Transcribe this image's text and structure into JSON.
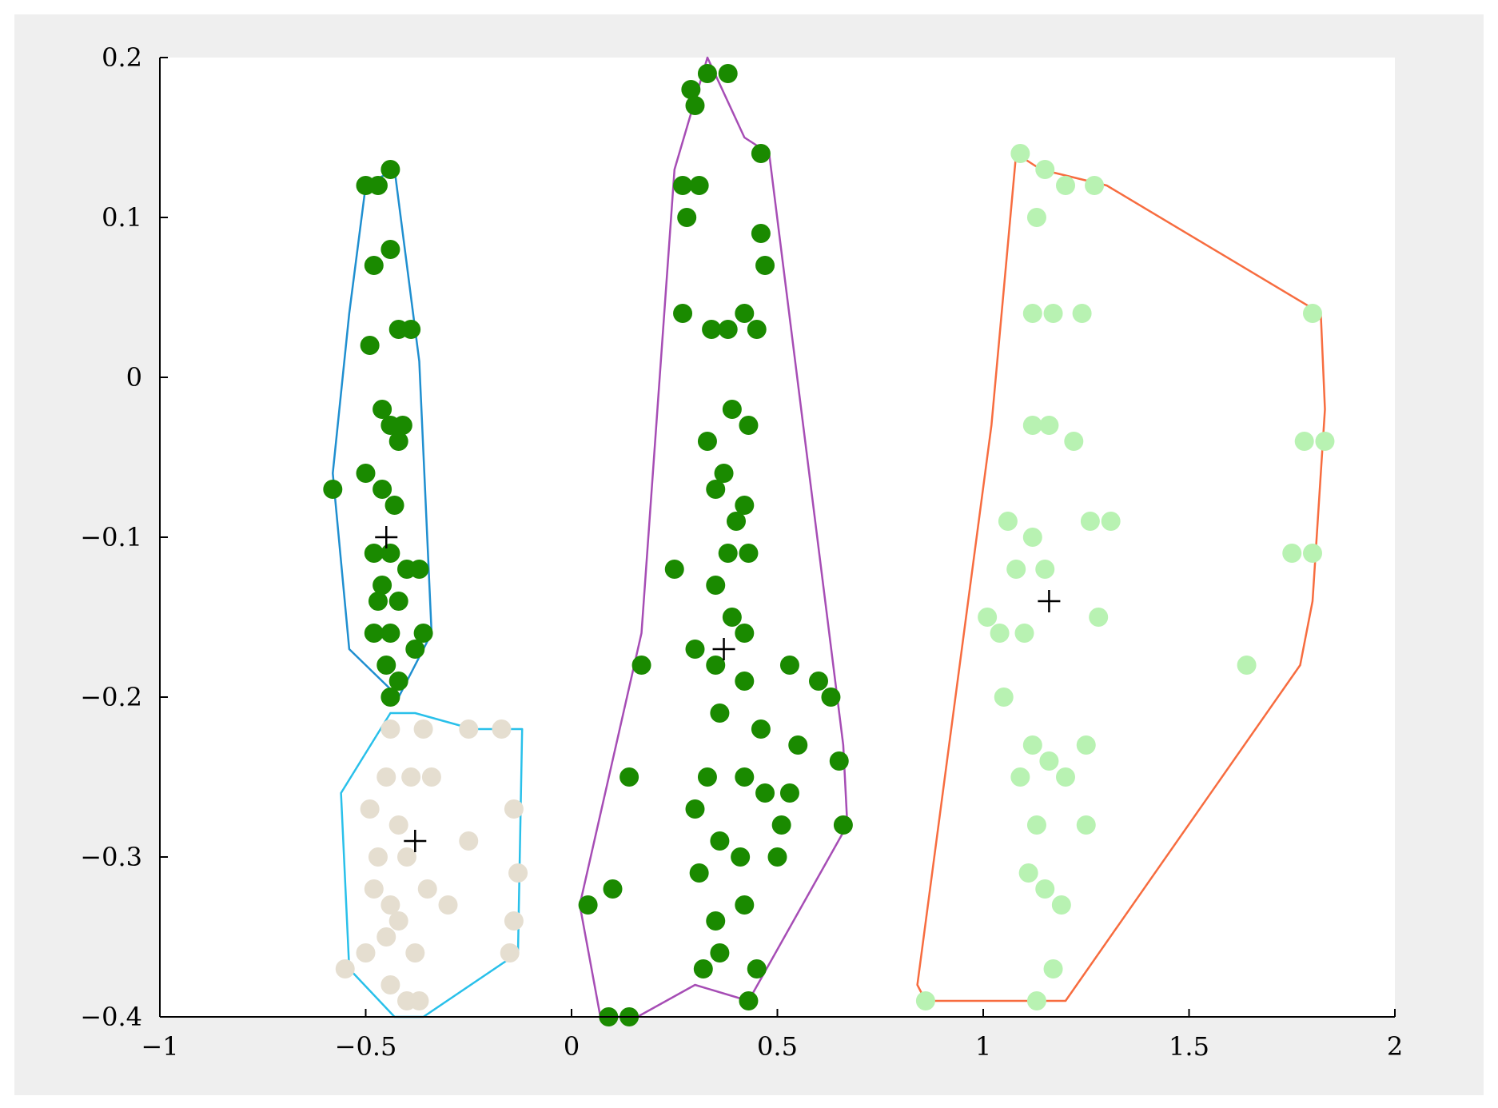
{
  "chart_data": {
    "type": "scatter",
    "title": "",
    "xlabel": "",
    "ylabel": "",
    "xlim": [
      -1,
      2
    ],
    "ylim": [
      -0.4,
      0.2
    ],
    "xticks": [
      -1,
      -0.5,
      0,
      0.5,
      1,
      1.5,
      2
    ],
    "xtick_labels": [
      "−1",
      "−0.5",
      "0",
      "0.5",
      "1",
      "1.5",
      "2"
    ],
    "yticks": [
      0.2,
      0.1,
      0,
      -0.1,
      -0.2,
      -0.3,
      -0.4
    ],
    "ytick_labels": [
      "0.2",
      "0.1",
      "0",
      "−0.1",
      "−0.2",
      "−0.3",
      "−0.4"
    ],
    "grid": false,
    "legend": "none",
    "colors": {
      "figure_background": "#efefef",
      "axes_background": "#ffffff",
      "axis": "#000000",
      "centroid": "#000000"
    },
    "series": [
      {
        "color": "#1a8a00",
        "hull_color": "#1f8fd0",
        "centroid": [
          -0.45,
          -0.1
        ],
        "hull": [
          [
            -0.5,
            0.12
          ],
          [
            -0.43,
            0.13
          ],
          [
            -0.37,
            0.01
          ],
          [
            -0.34,
            -0.16
          ],
          [
            -0.42,
            -0.2
          ],
          [
            -0.54,
            -0.17
          ],
          [
            -0.58,
            -0.06
          ],
          [
            -0.54,
            0.04
          ]
        ],
        "points": [
          [
            -0.5,
            0.12
          ],
          [
            -0.44,
            0.13
          ],
          [
            -0.47,
            0.12
          ],
          [
            -0.48,
            0.07
          ],
          [
            -0.44,
            0.08
          ],
          [
            -0.49,
            0.02
          ],
          [
            -0.42,
            0.03
          ],
          [
            -0.39,
            0.03
          ],
          [
            -0.44,
            -0.03
          ],
          [
            -0.41,
            -0.03
          ],
          [
            -0.46,
            -0.02
          ],
          [
            -0.42,
            -0.04
          ],
          [
            -0.58,
            -0.07
          ],
          [
            -0.5,
            -0.06
          ],
          [
            -0.46,
            -0.07
          ],
          [
            -0.43,
            -0.08
          ],
          [
            -0.48,
            -0.11
          ],
          [
            -0.44,
            -0.11
          ],
          [
            -0.4,
            -0.12
          ],
          [
            -0.46,
            -0.13
          ],
          [
            -0.42,
            -0.14
          ],
          [
            -0.37,
            -0.12
          ],
          [
            -0.48,
            -0.16
          ],
          [
            -0.44,
            -0.16
          ],
          [
            -0.36,
            -0.16
          ],
          [
            -0.45,
            -0.18
          ],
          [
            -0.42,
            -0.19
          ],
          [
            -0.44,
            -0.2
          ],
          [
            -0.47,
            -0.14
          ],
          [
            -0.38,
            -0.17
          ]
        ]
      },
      {
        "color": "#e5ded0",
        "hull_color": "#29c0ea",
        "centroid": [
          -0.38,
          -0.29
        ],
        "hull": [
          [
            -0.44,
            -0.21
          ],
          [
            -0.38,
            -0.21
          ],
          [
            -0.24,
            -0.22
          ],
          [
            -0.12,
            -0.22
          ],
          [
            -0.13,
            -0.36
          ],
          [
            -0.36,
            -0.4
          ],
          [
            -0.43,
            -0.4
          ],
          [
            -0.54,
            -0.37
          ],
          [
            -0.56,
            -0.26
          ]
        ],
        "points": [
          [
            -0.44,
            -0.22
          ],
          [
            -0.36,
            -0.22
          ],
          [
            -0.25,
            -0.22
          ],
          [
            -0.17,
            -0.22
          ],
          [
            -0.45,
            -0.25
          ],
          [
            -0.39,
            -0.25
          ],
          [
            -0.34,
            -0.25
          ],
          [
            -0.49,
            -0.27
          ],
          [
            -0.42,
            -0.28
          ],
          [
            -0.25,
            -0.29
          ],
          [
            -0.14,
            -0.27
          ],
          [
            -0.4,
            -0.3
          ],
          [
            -0.47,
            -0.3
          ],
          [
            -0.13,
            -0.31
          ],
          [
            -0.44,
            -0.33
          ],
          [
            -0.3,
            -0.33
          ],
          [
            -0.35,
            -0.32
          ],
          [
            -0.14,
            -0.34
          ],
          [
            -0.45,
            -0.35
          ],
          [
            -0.38,
            -0.36
          ],
          [
            -0.15,
            -0.36
          ],
          [
            -0.44,
            -0.38
          ],
          [
            -0.55,
            -0.37
          ],
          [
            -0.4,
            -0.39
          ],
          [
            -0.37,
            -0.39
          ],
          [
            -0.5,
            -0.36
          ],
          [
            -0.48,
            -0.32
          ],
          [
            -0.42,
            -0.34
          ]
        ]
      },
      {
        "color": "#1a8a00",
        "hull_color": "#a64db5",
        "centroid": [
          0.37,
          -0.17
        ],
        "hull": [
          [
            0.33,
            0.2
          ],
          [
            0.42,
            0.15
          ],
          [
            0.48,
            0.14
          ],
          [
            0.66,
            -0.23
          ],
          [
            0.67,
            -0.28
          ],
          [
            0.43,
            -0.39
          ],
          [
            0.3,
            -0.38
          ],
          [
            0.16,
            -0.4
          ],
          [
            0.07,
            -0.4
          ],
          [
            0.02,
            -0.33
          ],
          [
            0.17,
            -0.16
          ],
          [
            0.25,
            0.13
          ]
        ],
        "points": [
          [
            0.33,
            0.19
          ],
          [
            0.38,
            0.19
          ],
          [
            0.29,
            0.18
          ],
          [
            0.3,
            0.17
          ],
          [
            0.46,
            0.14
          ],
          [
            0.27,
            0.12
          ],
          [
            0.31,
            0.12
          ],
          [
            0.28,
            0.1
          ],
          [
            0.46,
            0.09
          ],
          [
            0.47,
            0.07
          ],
          [
            0.27,
            0.04
          ],
          [
            0.34,
            0.03
          ],
          [
            0.42,
            0.04
          ],
          [
            0.45,
            0.03
          ],
          [
            0.38,
            0.03
          ],
          [
            0.39,
            -0.02
          ],
          [
            0.43,
            -0.03
          ],
          [
            0.33,
            -0.04
          ],
          [
            0.37,
            -0.06
          ],
          [
            0.35,
            -0.07
          ],
          [
            0.42,
            -0.08
          ],
          [
            0.4,
            -0.09
          ],
          [
            0.38,
            -0.11
          ],
          [
            0.43,
            -0.11
          ],
          [
            0.25,
            -0.12
          ],
          [
            0.35,
            -0.13
          ],
          [
            0.39,
            -0.15
          ],
          [
            0.42,
            -0.16
          ],
          [
            0.17,
            -0.18
          ],
          [
            0.3,
            -0.17
          ],
          [
            0.35,
            -0.18
          ],
          [
            0.42,
            -0.19
          ],
          [
            0.53,
            -0.18
          ],
          [
            0.6,
            -0.19
          ],
          [
            0.63,
            -0.2
          ],
          [
            0.36,
            -0.21
          ],
          [
            0.46,
            -0.22
          ],
          [
            0.55,
            -0.23
          ],
          [
            0.65,
            -0.24
          ],
          [
            0.33,
            -0.25
          ],
          [
            0.42,
            -0.25
          ],
          [
            0.47,
            -0.26
          ],
          [
            0.14,
            -0.25
          ],
          [
            0.3,
            -0.27
          ],
          [
            0.53,
            -0.26
          ],
          [
            0.51,
            -0.28
          ],
          [
            0.36,
            -0.29
          ],
          [
            0.41,
            -0.3
          ],
          [
            0.5,
            -0.3
          ],
          [
            0.66,
            -0.28
          ],
          [
            0.31,
            -0.31
          ],
          [
            0.42,
            -0.33
          ],
          [
            0.35,
            -0.34
          ],
          [
            0.1,
            -0.32
          ],
          [
            0.04,
            -0.33
          ],
          [
            0.36,
            -0.36
          ],
          [
            0.45,
            -0.37
          ],
          [
            0.32,
            -0.37
          ],
          [
            0.43,
            -0.39
          ],
          [
            0.09,
            -0.4
          ],
          [
            0.14,
            -0.4
          ]
        ]
      },
      {
        "color": "#b8f2b2",
        "hull_color": "#f76c3f",
        "centroid": [
          1.16,
          -0.14
        ],
        "hull": [
          [
            1.08,
            0.14
          ],
          [
            1.14,
            0.13
          ],
          [
            1.3,
            0.12
          ],
          [
            1.82,
            0.04
          ],
          [
            1.83,
            -0.02
          ],
          [
            1.8,
            -0.14
          ],
          [
            1.77,
            -0.18
          ],
          [
            1.2,
            -0.39
          ],
          [
            1.17,
            -0.39
          ],
          [
            1.08,
            -0.39
          ],
          [
            0.86,
            -0.39
          ],
          [
            0.84,
            -0.38
          ],
          [
            1.02,
            -0.03
          ]
        ],
        "points": [
          [
            1.09,
            0.14
          ],
          [
            1.15,
            0.13
          ],
          [
            1.2,
            0.12
          ],
          [
            1.27,
            0.12
          ],
          [
            1.13,
            0.1
          ],
          [
            1.8,
            0.04
          ],
          [
            1.12,
            0.04
          ],
          [
            1.17,
            0.04
          ],
          [
            1.24,
            0.04
          ],
          [
            1.12,
            -0.03
          ],
          [
            1.16,
            -0.03
          ],
          [
            1.22,
            -0.04
          ],
          [
            1.78,
            -0.04
          ],
          [
            1.83,
            -0.04
          ],
          [
            1.06,
            -0.09
          ],
          [
            1.12,
            -0.1
          ],
          [
            1.26,
            -0.09
          ],
          [
            1.31,
            -0.09
          ],
          [
            1.08,
            -0.12
          ],
          [
            1.15,
            -0.12
          ],
          [
            1.8,
            -0.11
          ],
          [
            1.75,
            -0.11
          ],
          [
            1.01,
            -0.15
          ],
          [
            1.04,
            -0.16
          ],
          [
            1.1,
            -0.16
          ],
          [
            1.28,
            -0.15
          ],
          [
            1.64,
            -0.18
          ],
          [
            1.05,
            -0.2
          ],
          [
            1.12,
            -0.23
          ],
          [
            1.16,
            -0.24
          ],
          [
            1.09,
            -0.25
          ],
          [
            1.25,
            -0.23
          ],
          [
            1.2,
            -0.25
          ],
          [
            1.13,
            -0.28
          ],
          [
            1.25,
            -0.28
          ],
          [
            1.11,
            -0.31
          ],
          [
            1.15,
            -0.32
          ],
          [
            1.19,
            -0.33
          ],
          [
            1.17,
            -0.37
          ],
          [
            1.13,
            -0.39
          ],
          [
            0.86,
            -0.39
          ]
        ]
      }
    ]
  }
}
